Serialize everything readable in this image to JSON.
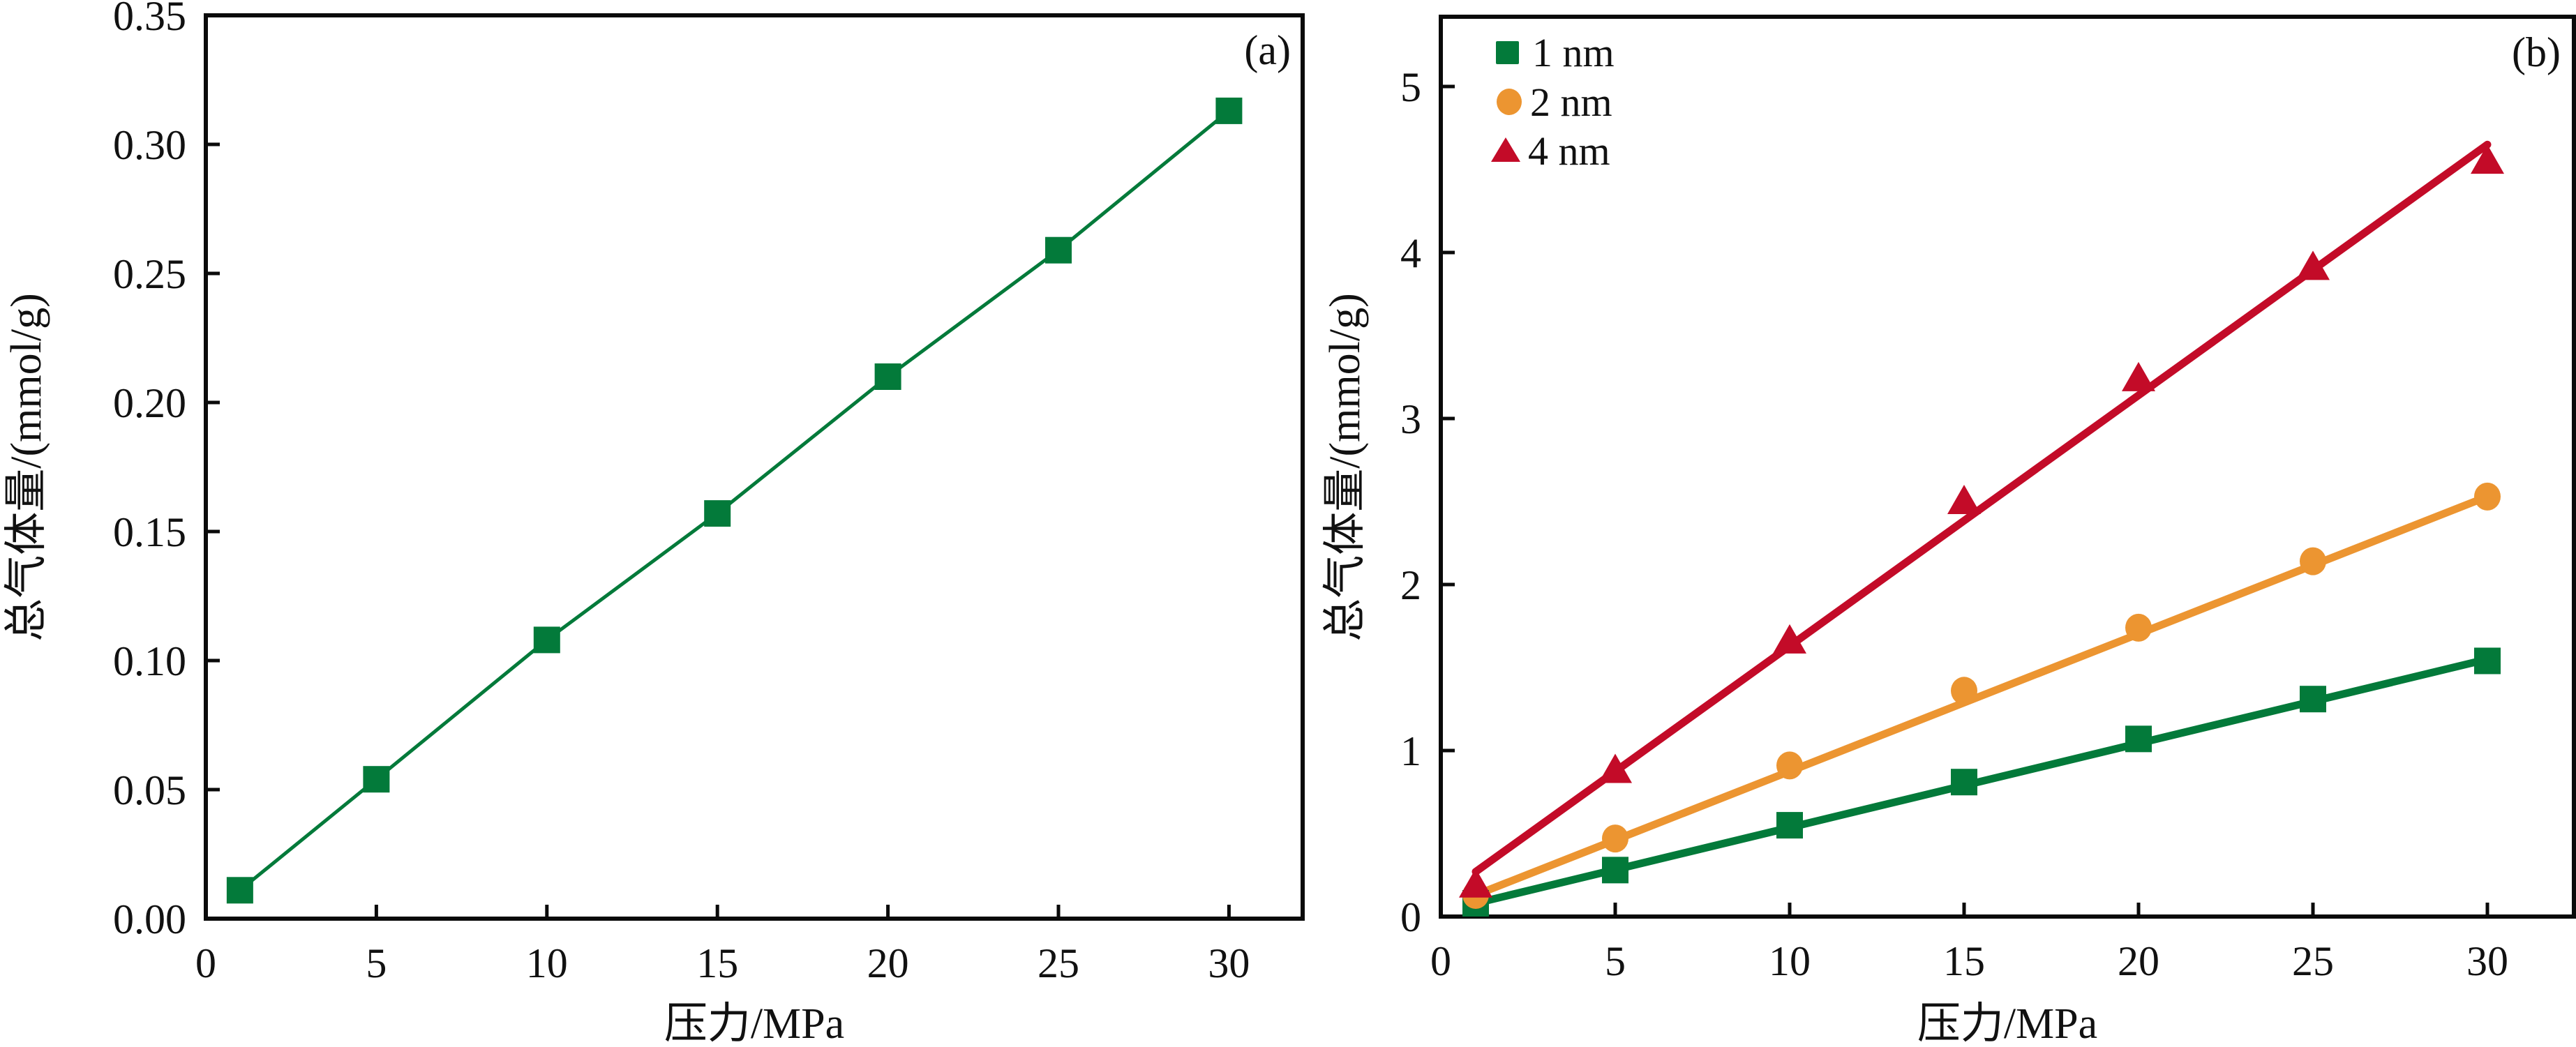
{
  "colors": {
    "series_1nm": "#037a3a",
    "series_2nm": "#ec9531",
    "series_4nm": "#c30b28",
    "axis": "#0a0a0a"
  },
  "chart_data": [
    {
      "panel": "(a)",
      "type": "line",
      "title": "",
      "xlabel": "压力/MPa",
      "ylabel": "总气体量/(mmol/g)",
      "xlim": [
        0,
        32.2
      ],
      "ylim": [
        0,
        0.35
      ],
      "xticks": [
        0,
        5,
        10,
        15,
        20,
        25,
        30
      ],
      "xtick_labels": [
        "0",
        "5",
        "10",
        "15",
        "20",
        "25",
        "30"
      ],
      "yticks": [
        0,
        0.05,
        0.1,
        0.15,
        0.2,
        0.25,
        0.3,
        0.35
      ],
      "ytick_labels": [
        "0.00",
        "0.05",
        "0.10",
        "0.15",
        "0.20",
        "0.25",
        "0.30",
        "0.35"
      ],
      "grid": false,
      "legend": null,
      "series": [
        {
          "name": "",
          "marker": "square",
          "color_key": "series_1nm",
          "x": [
            1,
            5,
            10,
            15,
            20,
            25,
            30
          ],
          "y": [
            0.011,
            0.054,
            0.108,
            0.157,
            0.21,
            0.259,
            0.313
          ]
        }
      ]
    },
    {
      "panel": "(b)",
      "type": "line",
      "title": "",
      "xlabel": "压力/MPa",
      "ylabel": "总气体量/(mmol/g)",
      "xlim": [
        0,
        32.5
      ],
      "ylim": [
        0,
        5.42
      ],
      "xticks": [
        0,
        5,
        10,
        15,
        20,
        25,
        30
      ],
      "xtick_labels": [
        "0",
        "5",
        "10",
        "15",
        "20",
        "25",
        "30"
      ],
      "yticks": [
        0,
        1,
        2,
        3,
        4,
        5
      ],
      "ytick_labels": [
        "0",
        "1",
        "2",
        "3",
        "4",
        "5"
      ],
      "grid": false,
      "legend": "top-left",
      "series": [
        {
          "name": "1 nm",
          "marker": "square",
          "color_key": "series_1nm",
          "x": [
            1,
            5,
            10,
            15,
            20,
            25,
            30
          ],
          "y": [
            0.08,
            0.28,
            0.55,
            0.81,
            1.07,
            1.31,
            1.54
          ],
          "fit": [
            [
              1,
              0.08
            ],
            [
              30,
              1.55
            ]
          ]
        },
        {
          "name": "2 nm",
          "marker": "circle",
          "color_key": "series_2nm",
          "x": [
            1,
            5,
            10,
            15,
            20,
            25,
            30
          ],
          "y": [
            0.13,
            0.47,
            0.91,
            1.36,
            1.74,
            2.14,
            2.53
          ],
          "fit": [
            [
              1,
              0.13
            ],
            [
              30,
              2.53
            ]
          ]
        },
        {
          "name": "4 nm",
          "marker": "triangle",
          "color_key": "series_4nm",
          "x": [
            1,
            5,
            10,
            15,
            20,
            25,
            30
          ],
          "y": [
            0.19,
            0.88,
            1.66,
            2.5,
            3.24,
            3.91,
            4.55
          ],
          "fit": [
            [
              1,
              0.27
            ],
            [
              30,
              4.65
            ]
          ]
        }
      ]
    }
  ]
}
